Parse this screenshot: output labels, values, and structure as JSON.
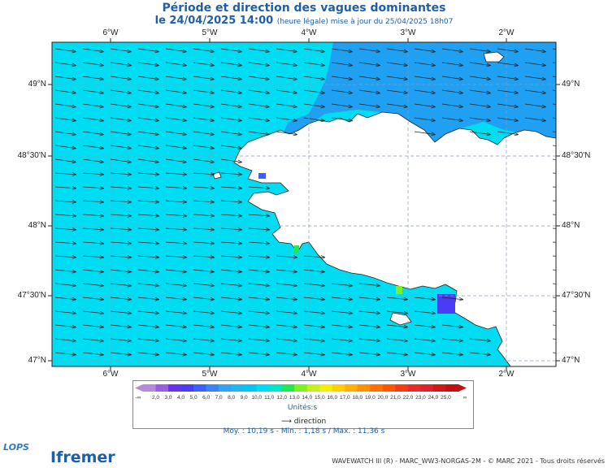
{
  "header": {
    "title": "Période et direction des vagues dominantes",
    "date": "le 24/04/2025 14:00",
    "note": "(heure légale) mise à jour du 25/04/2025 18h07"
  },
  "map": {
    "lon_labels": [
      "6°W",
      "5°W",
      "4°W",
      "3°W",
      "2°W"
    ],
    "lat_labels": [
      "49°N",
      "48°30'N",
      "48°N",
      "47°30'N",
      "47°N"
    ],
    "sea_color": "#00ddf2",
    "deep_color": "#1fa0f2",
    "land_color": "#ffffff",
    "arrow_color": "#222222",
    "grid": true
  },
  "legend": {
    "ticks": [
      "2,0",
      "3,0",
      "4,0",
      "5,0",
      "6,0",
      "7,0",
      "8,0",
      "9,0",
      "10,0",
      "11,0",
      "12,0",
      "13,0",
      "14,0",
      "15,0",
      "16,0",
      "17,0",
      "18,0",
      "19,0",
      "20,0",
      "21,0",
      "22,0",
      "23,0",
      "24,0",
      "25,0"
    ],
    "left_symbol": "-∞",
    "right_symbol": "∞",
    "colors": [
      "#b58ad6",
      "#9a5ce0",
      "#6b2ff0",
      "#4a3cf5",
      "#3d5ef8",
      "#3a82f8",
      "#2fa3f5",
      "#1fb6f2",
      "#00c8f0",
      "#00ddf2",
      "#00e8c8",
      "#22e84f",
      "#7ef020",
      "#c2f020",
      "#f4ee00",
      "#ffd000",
      "#ffb000",
      "#ff9000",
      "#ff7000",
      "#ff5400",
      "#f53a1a",
      "#e82a2a",
      "#e0202a",
      "#d01818",
      "#c01010"
    ],
    "units": "Unités:s",
    "direction_label": "direction"
  },
  "stats": "Moy. : 10,19 s   -   Min. : 1,18 s / Max. : 11,36 s",
  "credit": "WAVEWATCH III (R) - MARC_WW3-NORGAS-2M - © MARC 2021 - Tous droits réservés",
  "logos": {
    "lops": "LOPS",
    "ifremer": "Ifremer"
  }
}
